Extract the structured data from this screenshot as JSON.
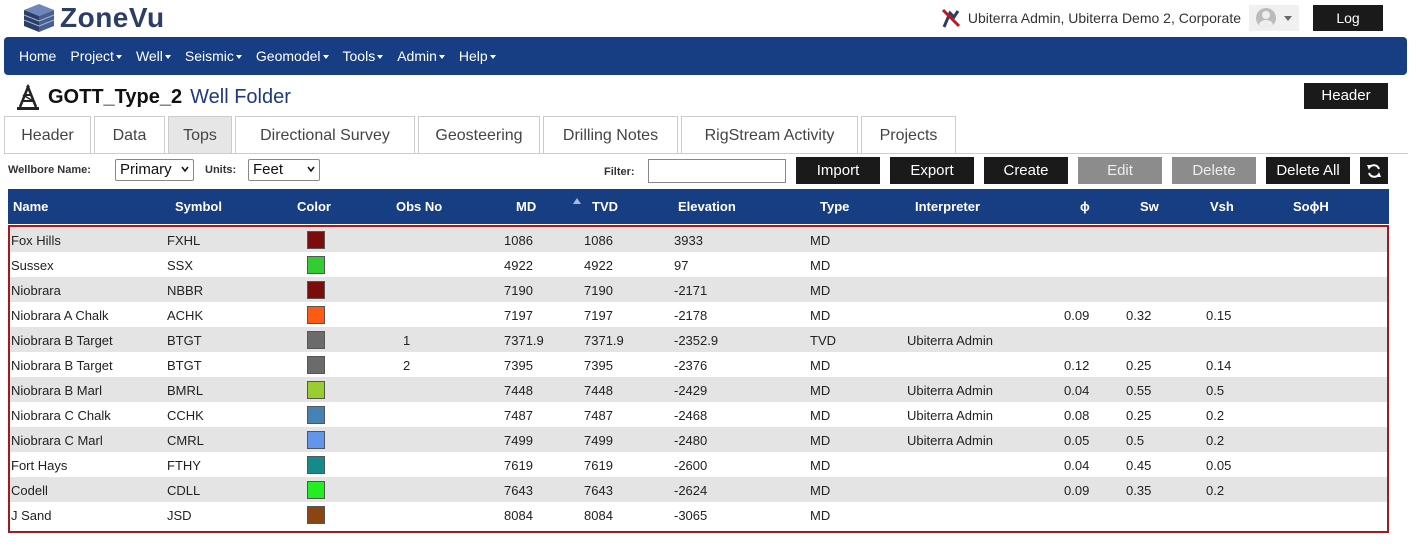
{
  "app": {
    "logo_text": "ZoneVu",
    "user_text": "Ubiterra Admin, Ubiterra Demo 2, Corporate",
    "logout_label": "Log out"
  },
  "nav": {
    "items": [
      {
        "label": "Home",
        "dropdown": false
      },
      {
        "label": "Project",
        "dropdown": true
      },
      {
        "label": "Well",
        "dropdown": true
      },
      {
        "label": "Seismic",
        "dropdown": true
      },
      {
        "label": "Geomodel",
        "dropdown": true
      },
      {
        "label": "Tools",
        "dropdown": true
      },
      {
        "label": "Admin",
        "dropdown": true
      },
      {
        "label": "Help",
        "dropdown": true
      }
    ]
  },
  "page": {
    "well_name": "GOTT_Type_2",
    "folder_label": "Well Folder",
    "header_button": "Header"
  },
  "tabs": [
    {
      "label": "Header",
      "active": false
    },
    {
      "label": "Data",
      "active": false
    },
    {
      "label": "Tops",
      "active": true
    },
    {
      "label": "Directional Survey",
      "active": false
    },
    {
      "label": "Geosteering",
      "active": false
    },
    {
      "label": "Drilling Notes",
      "active": false
    },
    {
      "label": "RigStream Activity",
      "active": false
    },
    {
      "label": "Projects",
      "active": false
    }
  ],
  "toolbar": {
    "wellbore_label": "Wellbore Name:",
    "wellbore_value": "Primary",
    "units_label": "Units:",
    "units_value": "Feet",
    "filter_label": "Filter:",
    "filter_value": "",
    "buttons": [
      {
        "label": "Import",
        "enabled": true
      },
      {
        "label": "Export",
        "enabled": true
      },
      {
        "label": "Create",
        "enabled": true
      },
      {
        "label": "Edit",
        "enabled": false
      },
      {
        "label": "Delete",
        "enabled": false
      },
      {
        "label": "Delete All",
        "enabled": true
      }
    ]
  },
  "table": {
    "columns": [
      "Name",
      "Symbol",
      "Color",
      "Obs No",
      "MD",
      "TVD",
      "Elevation",
      "Type",
      "Interpreter",
      "ϕ",
      "Sw",
      "Vsh",
      "SoϕH"
    ],
    "sorted_column": "TVD",
    "rows": [
      {
        "name": "Fox Hills",
        "symbol": "FXHL",
        "color": "#7b0c0c",
        "obs": "",
        "md": "1086",
        "tvd": "1086",
        "elev": "3933",
        "type": "MD",
        "interp": "",
        "phi": "",
        "sw": "",
        "vsh": "",
        "soh": ""
      },
      {
        "name": "Sussex",
        "symbol": "SSX",
        "color": "#33cc33",
        "obs": "",
        "md": "4922",
        "tvd": "4922",
        "elev": "97",
        "type": "MD",
        "interp": "",
        "phi": "",
        "sw": "",
        "vsh": "",
        "soh": ""
      },
      {
        "name": "Niobrara",
        "symbol": "NBBR",
        "color": "#7b0c0c",
        "obs": "",
        "md": "7190",
        "tvd": "7190",
        "elev": "-2171",
        "type": "MD",
        "interp": "",
        "phi": "",
        "sw": "",
        "vsh": "",
        "soh": ""
      },
      {
        "name": "Niobrara A Chalk",
        "symbol": "ACHK",
        "color": "#ff5a14",
        "obs": "",
        "md": "7197",
        "tvd": "7197",
        "elev": "-2178",
        "type": "MD",
        "interp": "",
        "phi": "0.09",
        "sw": "0.32",
        "vsh": "0.15",
        "soh": ""
      },
      {
        "name": "Niobrara B Target",
        "symbol": "BTGT",
        "color": "#6b6b6b",
        "obs": "1",
        "md": "7371.9",
        "tvd": "7371.9",
        "elev": "-2352.9",
        "type": "TVD",
        "interp": "Ubiterra Admin",
        "phi": "",
        "sw": "",
        "vsh": "",
        "soh": ""
      },
      {
        "name": "Niobrara B Target",
        "symbol": "BTGT",
        "color": "#6b6b6b",
        "obs": "2",
        "md": "7395",
        "tvd": "7395",
        "elev": "-2376",
        "type": "MD",
        "interp": "",
        "phi": "0.12",
        "sw": "0.25",
        "vsh": "0.14",
        "soh": ""
      },
      {
        "name": "Niobrara B Marl",
        "symbol": "BMRL",
        "color": "#9acd32",
        "obs": "",
        "md": "7448",
        "tvd": "7448",
        "elev": "-2429",
        "type": "MD",
        "interp": "Ubiterra Admin",
        "phi": "0.04",
        "sw": "0.55",
        "vsh": "0.5",
        "soh": ""
      },
      {
        "name": "Niobrara C Chalk",
        "symbol": "CCHK",
        "color": "#4682b4",
        "obs": "",
        "md": "7487",
        "tvd": "7487",
        "elev": "-2468",
        "type": "MD",
        "interp": "Ubiterra Admin",
        "phi": "0.08",
        "sw": "0.25",
        "vsh": "0.2",
        "soh": ""
      },
      {
        "name": "Niobrara C Marl",
        "symbol": "CMRL",
        "color": "#6495ed",
        "obs": "",
        "md": "7499",
        "tvd": "7499",
        "elev": "-2480",
        "type": "MD",
        "interp": "Ubiterra Admin",
        "phi": "0.05",
        "sw": "0.5",
        "vsh": "0.2",
        "soh": ""
      },
      {
        "name": "Fort Hays",
        "symbol": "FTHY",
        "color": "#148a8a",
        "obs": "",
        "md": "7619",
        "tvd": "7619",
        "elev": "-2600",
        "type": "MD",
        "interp": "",
        "phi": "0.04",
        "sw": "0.45",
        "vsh": "0.05",
        "soh": ""
      },
      {
        "name": "Codell",
        "symbol": "CDLL",
        "color": "#22ee22",
        "obs": "",
        "md": "7643",
        "tvd": "7643",
        "elev": "-2624",
        "type": "MD",
        "interp": "",
        "phi": "0.09",
        "sw": "0.35",
        "vsh": "0.2",
        "soh": ""
      },
      {
        "name": "J Sand",
        "symbol": "JSD",
        "color": "#8b4513",
        "obs": "",
        "md": "8084",
        "tvd": "8084",
        "elev": "-3065",
        "type": "MD",
        "interp": "",
        "phi": "",
        "sw": "",
        "vsh": "",
        "soh": ""
      }
    ]
  },
  "colors": {
    "nav_bg": "#173e82",
    "button_bg": "#1a1a1a",
    "button_disabled": "#8c8c8c",
    "selection_border": "#a31920"
  }
}
